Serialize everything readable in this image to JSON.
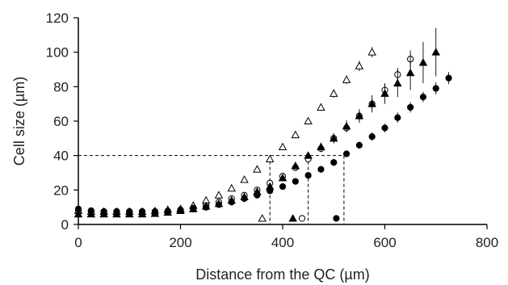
{
  "chart_data": {
    "type": "scatter",
    "xlabel": "Distance from the QC (µm)",
    "ylabel": "Cell size (µm)",
    "xlim": [
      0,
      800
    ],
    "ylim": [
      0,
      120
    ],
    "xticks": [
      0,
      200,
      400,
      600,
      800
    ],
    "yticks": [
      0,
      20,
      40,
      60,
      80,
      100,
      120
    ],
    "grid": false,
    "series": [
      {
        "marker": "open-triangle",
        "color": "#000000",
        "x": [
          0,
          25,
          50,
          75,
          100,
          125,
          150,
          175,
          200,
          225,
          250,
          275,
          300,
          325,
          350,
          375,
          400,
          425,
          450,
          475,
          500,
          525,
          550,
          575
        ],
        "y": [
          8,
          7.5,
          7.5,
          7.5,
          7.5,
          7.5,
          7.8,
          8.5,
          9,
          11,
          14,
          17,
          21,
          26,
          32,
          38,
          45,
          52,
          60,
          68,
          76,
          84,
          92,
          100
        ],
        "err": [
          0,
          0,
          0,
          0,
          0,
          0,
          0,
          0,
          0,
          0,
          0,
          0,
          0,
          0,
          0,
          1.5,
          1.5,
          2,
          2,
          2,
          2.5,
          2.5,
          3,
          3
        ]
      },
      {
        "marker": "open-circle",
        "color": "#000000",
        "x": [
          0,
          25,
          50,
          75,
          100,
          125,
          150,
          175,
          200,
          225,
          250,
          275,
          300,
          325,
          350,
          375,
          400,
          425,
          450,
          475,
          500,
          525,
          550,
          575,
          600,
          625,
          650
        ],
        "y": [
          8,
          7.8,
          7.5,
          7.5,
          7.5,
          7.5,
          7.5,
          7.8,
          8.5,
          9.5,
          11,
          13,
          15,
          17,
          20,
          24,
          28,
          33,
          38,
          44,
          50,
          56,
          63,
          70,
          78,
          87,
          96
        ],
        "err": [
          0,
          0,
          0,
          0,
          0,
          0,
          0,
          0,
          0,
          0,
          0,
          0,
          0,
          0,
          0,
          1,
          1.5,
          2,
          2,
          2,
          2.5,
          2.5,
          3,
          3,
          3.5,
          4,
          5
        ]
      },
      {
        "marker": "filled-triangle",
        "color": "#000000",
        "x": [
          0,
          25,
          50,
          75,
          100,
          125,
          150,
          175,
          200,
          225,
          250,
          275,
          300,
          325,
          350,
          375,
          400,
          425,
          450,
          475,
          500,
          525,
          550,
          575,
          600,
          625,
          650,
          675,
          700
        ],
        "y": [
          6,
          6,
          6,
          6,
          6,
          6,
          6.3,
          7,
          8,
          9,
          10.5,
          12,
          14,
          16,
          19,
          22,
          27,
          34,
          40,
          45,
          50,
          57,
          63,
          70,
          76,
          82,
          88,
          94,
          100
        ],
        "err": [
          0,
          0,
          0,
          0,
          0,
          0,
          0,
          0,
          0,
          0,
          0,
          0,
          0,
          0,
          0,
          1.5,
          2,
          2,
          2,
          2.5,
          3,
          3.5,
          4,
          5,
          6,
          8,
          10,
          12,
          14
        ]
      },
      {
        "marker": "filled-circle",
        "color": "#000000",
        "x": [
          0,
          25,
          50,
          75,
          100,
          125,
          150,
          175,
          200,
          225,
          250,
          275,
          300,
          325,
          350,
          375,
          400,
          425,
          450,
          475,
          500,
          525,
          550,
          575,
          600,
          625,
          650,
          675,
          700,
          725
        ],
        "y": [
          9,
          8,
          7.5,
          7.5,
          7.5,
          7.5,
          7.5,
          7.5,
          8,
          9,
          10,
          11.5,
          13,
          15,
          17,
          19.5,
          22,
          25,
          28.5,
          32,
          36,
          41,
          46,
          51,
          56,
          62,
          68,
          74,
          79,
          85
        ],
        "err": [
          0,
          0,
          0,
          0,
          0,
          0,
          0,
          0,
          0,
          0,
          0,
          0,
          0,
          0,
          0,
          1,
          1,
          1.5,
          1.5,
          1.5,
          2,
          2,
          2,
          2.5,
          2.5,
          3,
          3,
          3,
          3.5,
          3.5
        ]
      }
    ],
    "threshold": {
      "y": 40,
      "x_values": [
        375,
        450,
        520
      ]
    },
    "axis_markers": [
      {
        "marker": "open-triangle",
        "x": 360,
        "y": 3.5
      },
      {
        "marker": "open-circle",
        "x": 438,
        "y": 3.5
      },
      {
        "marker": "filled-triangle",
        "x": 420,
        "y": 3.5
      },
      {
        "marker": "filled-circle",
        "x": 505,
        "y": 3.5
      }
    ]
  }
}
